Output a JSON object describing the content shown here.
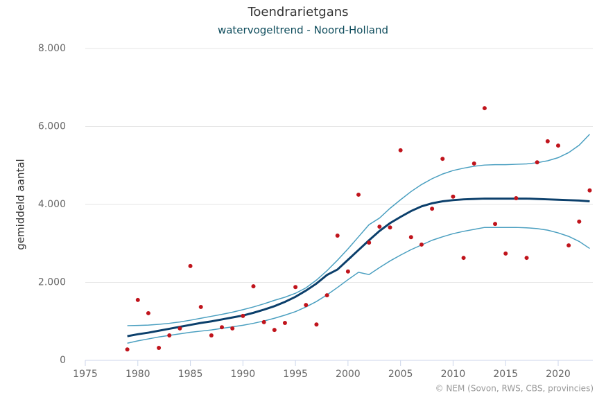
{
  "chart_data": {
    "type": "scatter",
    "title": "Toendrarietgans",
    "subtitle": "watervogeltrend - Noord-Holland",
    "ylabel": "gemiddeld aantal",
    "credit": "© NEM (Sovon, RWS, CBS, provincies)",
    "x": [
      1979,
      1980,
      1981,
      1982,
      1983,
      1984,
      1985,
      1986,
      1987,
      1988,
      1989,
      1990,
      1991,
      1992,
      1993,
      1994,
      1995,
      1996,
      1997,
      1998,
      1999,
      2000,
      2001,
      2002,
      2003,
      2004,
      2005,
      2006,
      2007,
      2008,
      2009,
      2010,
      2011,
      2012,
      2013,
      2014,
      2015,
      2016,
      2017,
      2018,
      2019,
      2020,
      2021,
      2022,
      2023
    ],
    "series": [
      {
        "style": "line",
        "color": "#4a9fc0",
        "width": 1.5,
        "values": [
          890,
          895,
          905,
          925,
          950,
          985,
          1030,
          1080,
          1130,
          1180,
          1235,
          1300,
          1370,
          1450,
          1540,
          1620,
          1720,
          1860,
          2060,
          2300,
          2570,
          2860,
          3170,
          3480,
          3650,
          3900,
          4120,
          4330,
          4510,
          4660,
          4780,
          4870,
          4930,
          4980,
          5010,
          5020,
          5020,
          5030,
          5040,
          5070,
          5120,
          5200,
          5330,
          5520,
          5800
        ]
      },
      {
        "style": "line",
        "color": "#4a9fc0",
        "width": 1.5,
        "values": [
          440,
          500,
          550,
          600,
          640,
          680,
          720,
          750,
          780,
          820,
          860,
          900,
          950,
          1010,
          1080,
          1160,
          1250,
          1370,
          1510,
          1680,
          1870,
          2070,
          2260,
          2200,
          2380,
          2550,
          2700,
          2840,
          2960,
          3080,
          3170,
          3250,
          3310,
          3360,
          3410,
          3410,
          3410,
          3410,
          3400,
          3380,
          3340,
          3270,
          3180,
          3050,
          2870
        ]
      },
      {
        "style": "line",
        "color": "#0b3f6b",
        "width": 3,
        "values": [
          620,
          670,
          710,
          760,
          810,
          860,
          910,
          960,
          1000,
          1050,
          1100,
          1150,
          1220,
          1300,
          1390,
          1500,
          1630,
          1790,
          1970,
          2190,
          2330,
          2580,
          2830,
          3080,
          3320,
          3520,
          3680,
          3830,
          3950,
          4030,
          4080,
          4110,
          4130,
          4140,
          4150,
          4150,
          4150,
          4150,
          4150,
          4140,
          4130,
          4120,
          4110,
          4100,
          4080
        ]
      },
      {
        "style": "points",
        "color": "#c0141c",
        "values": [
          280,
          1550,
          1210,
          320,
          640,
          820,
          2420,
          1370,
          640,
          850,
          820,
          1140,
          1900,
          980,
          780,
          960,
          1880,
          1420,
          920,
          1670,
          3200,
          2280,
          4250,
          3020,
          3430,
          3410,
          5390,
          3160,
          2970,
          3890,
          5170,
          4200,
          2630,
          5050,
          6470,
          3500,
          2740,
          4160,
          2630,
          5080,
          5620,
          5510,
          2950,
          3560,
          4360
        ]
      }
    ],
    "xlim": [
      1975,
      2023.3
    ],
    "xticks": [
      1975,
      1980,
      1985,
      1990,
      1995,
      2000,
      2005,
      2010,
      2015,
      2020
    ],
    "ylim": [
      0,
      8000
    ],
    "yticks": [
      0,
      {
        "value": 2000,
        "label": "2.000"
      },
      {
        "value": 4000,
        "label": "4.000"
      },
      {
        "value": 6000,
        "label": "6.000"
      },
      {
        "value": 8000,
        "label": "8.000"
      }
    ],
    "grid": true
  }
}
